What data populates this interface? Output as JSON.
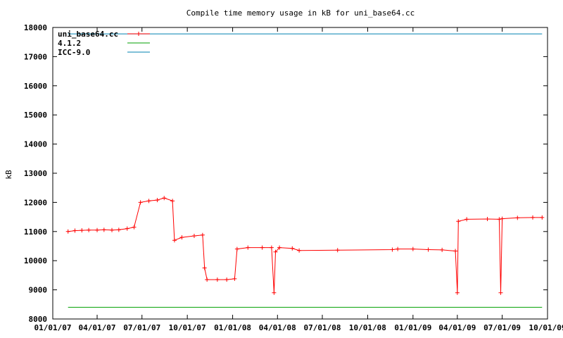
{
  "chart_data": {
    "type": "line",
    "title": "Compile time memory usage in kB for uni_base64.cc",
    "xlabel": "",
    "ylabel": "kB",
    "x_type": "date",
    "xlim": [
      "2007-01-01",
      "2009-10-01"
    ],
    "ylim": [
      8000,
      18000
    ],
    "x_ticks": [
      "2007-01-01",
      "2007-04-01",
      "2007-07-01",
      "2007-10-01",
      "2008-01-01",
      "2008-04-01",
      "2008-07-01",
      "2008-10-01",
      "2009-01-01",
      "2009-04-01",
      "2009-07-01",
      "2009-10-01"
    ],
    "x_tick_labels": [
      "01/01/07",
      "04/01/07",
      "07/01/07",
      "10/01/07",
      "01/01/08",
      "04/01/08",
      "07/01/08",
      "10/01/08",
      "01/01/09",
      "04/01/09",
      "07/01/09",
      "10/01/09"
    ],
    "y_ticks": [
      8000,
      9000,
      10000,
      11000,
      12000,
      13000,
      14000,
      15000,
      16000,
      17000,
      18000
    ],
    "y_tick_labels": [
      "8000",
      "9000",
      "10000",
      "11000",
      "12000",
      "13000",
      "14000",
      "15000",
      "16000",
      "17000",
      "18000"
    ],
    "grid": false,
    "legend_position": "top-left",
    "series": [
      {
        "name": "uni_base64.cc",
        "color": "#ff0000",
        "marker": "plus",
        "points": [
          [
            "2007-02-01",
            11000
          ],
          [
            "2007-02-15",
            11030
          ],
          [
            "2007-03-01",
            11040
          ],
          [
            "2007-03-15",
            11050
          ],
          [
            "2007-04-01",
            11050
          ],
          [
            "2007-04-15",
            11060
          ],
          [
            "2007-05-01",
            11050
          ],
          [
            "2007-05-15",
            11060
          ],
          [
            "2007-06-01",
            11100
          ],
          [
            "2007-06-15",
            11150
          ],
          [
            "2007-06-28",
            12000
          ],
          [
            "2007-07-15",
            12050
          ],
          [
            "2007-08-01",
            12080
          ],
          [
            "2007-08-15",
            12150
          ],
          [
            "2007-09-01",
            12050
          ],
          [
            "2007-09-05",
            10700
          ],
          [
            "2007-09-20",
            10800
          ],
          [
            "2007-10-15",
            10850
          ],
          [
            "2007-11-01",
            10880
          ],
          [
            "2007-11-05",
            9750
          ],
          [
            "2007-11-10",
            9350
          ],
          [
            "2007-12-01",
            9350
          ],
          [
            "2007-12-20",
            9350
          ],
          [
            "2008-01-05",
            9380
          ],
          [
            "2008-01-10",
            10400
          ],
          [
            "2008-02-01",
            10450
          ],
          [
            "2008-03-01",
            10450
          ],
          [
            "2008-03-20",
            10450
          ],
          [
            "2008-03-25",
            8900
          ],
          [
            "2008-03-28",
            10300
          ],
          [
            "2008-04-05",
            10450
          ],
          [
            "2008-05-01",
            10420
          ],
          [
            "2008-05-15",
            10350
          ],
          [
            "2008-08-01",
            10360
          ],
          [
            "2008-11-20",
            10380
          ],
          [
            "2008-12-01",
            10400
          ],
          [
            "2009-01-01",
            10400
          ],
          [
            "2009-02-01",
            10380
          ],
          [
            "2009-03-01",
            10370
          ],
          [
            "2009-03-28",
            10330
          ],
          [
            "2009-04-01",
            8900
          ],
          [
            "2009-04-03",
            11350
          ],
          [
            "2009-04-20",
            11420
          ],
          [
            "2009-06-01",
            11430
          ],
          [
            "2009-06-25",
            11420
          ],
          [
            "2009-06-28",
            8900
          ],
          [
            "2009-07-01",
            11440
          ],
          [
            "2009-08-01",
            11470
          ],
          [
            "2009-09-01",
            11480
          ],
          [
            "2009-09-20",
            11480
          ]
        ]
      },
      {
        "name": "4.1.2",
        "color": "#00a000",
        "marker": "none",
        "points": [
          [
            "2007-02-01",
            8400
          ],
          [
            "2009-09-20",
            8400
          ]
        ]
      },
      {
        "name": "ICC-9.0",
        "color": "#0080b0",
        "marker": "none",
        "points": [
          [
            "2007-02-01",
            17780
          ],
          [
            "2009-09-20",
            17780
          ]
        ]
      }
    ]
  }
}
